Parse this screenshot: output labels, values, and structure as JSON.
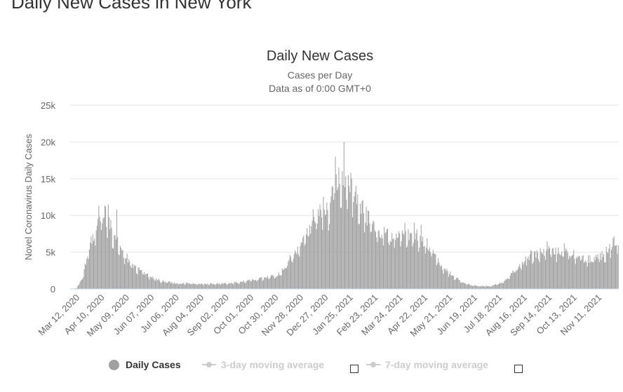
{
  "page": {
    "heading": "Daily New Cases in New York"
  },
  "chart_data": {
    "type": "bar",
    "title": "Daily New Cases",
    "subtitles": [
      "Cases per Day",
      "Data as of 0:00 GMT+0"
    ],
    "ylabel": "Novel Coronavirus Daily Cases",
    "xlabel": "",
    "ylim": [
      0,
      25000
    ],
    "y_ticks": [
      0,
      5000,
      10000,
      15000,
      20000,
      25000
    ],
    "y_tick_labels": [
      "0",
      "5k",
      "10k",
      "15k",
      "20k",
      "25k"
    ],
    "x_tick_labels": [
      "Mar 12, 2020",
      "Apr 10, 2020",
      "May 09, 2020",
      "Jun 07, 2020",
      "Jul 06, 2020",
      "Aug 04, 2020",
      "Sep 02, 2020",
      "Oct 01, 2020",
      "Oct 30, 2020",
      "Nov 28, 2020",
      "Dec 27, 2020",
      "Jan 25, 2021",
      "Feb 23, 2021",
      "Mar 24, 2021",
      "Apr 22, 2021",
      "May 21, 2021",
      "Jun 19, 2021",
      "Jul 18, 2021",
      "Aug 16, 2021",
      "Sep 14, 2021",
      "Oct 13, 2021",
      "Nov 11, 2021"
    ],
    "x_start": "2020-03-01",
    "x_end": "2021-11-30",
    "grid": true,
    "bar_color": "#a0a0a0",
    "daily_series_anchors": [
      {
        "date": "2020-03-01",
        "value": 0
      },
      {
        "date": "2020-03-08",
        "value": 100
      },
      {
        "date": "2020-03-15",
        "value": 1500
      },
      {
        "date": "2020-03-22",
        "value": 5500
      },
      {
        "date": "2020-03-29",
        "value": 7500
      },
      {
        "date": "2020-04-04",
        "value": 10000
      },
      {
        "date": "2020-04-10",
        "value": 10500
      },
      {
        "date": "2020-04-15",
        "value": 9000
      },
      {
        "date": "2020-04-22",
        "value": 7000
      },
      {
        "date": "2020-05-01",
        "value": 5000
      },
      {
        "date": "2020-05-15",
        "value": 3000
      },
      {
        "date": "2020-06-01",
        "value": 1800
      },
      {
        "date": "2020-06-15",
        "value": 1100
      },
      {
        "date": "2020-07-01",
        "value": 800
      },
      {
        "date": "2020-08-01",
        "value": 700
      },
      {
        "date": "2020-09-01",
        "value": 750
      },
      {
        "date": "2020-10-01",
        "value": 1200
      },
      {
        "date": "2020-10-30",
        "value": 2000
      },
      {
        "date": "2020-11-15",
        "value": 4500
      },
      {
        "date": "2020-11-28",
        "value": 6500
      },
      {
        "date": "2020-12-10",
        "value": 10000
      },
      {
        "date": "2020-12-27",
        "value": 11000
      },
      {
        "date": "2021-01-05",
        "value": 15000
      },
      {
        "date": "2021-01-15",
        "value": 15500
      },
      {
        "date": "2021-01-25",
        "value": 13500
      },
      {
        "date": "2021-02-10",
        "value": 10000
      },
      {
        "date": "2021-02-23",
        "value": 7500
      },
      {
        "date": "2021-03-24",
        "value": 7200
      },
      {
        "date": "2021-04-10",
        "value": 7200
      },
      {
        "date": "2021-04-22",
        "value": 6000
      },
      {
        "date": "2021-05-05",
        "value": 3500
      },
      {
        "date": "2021-05-21",
        "value": 1800
      },
      {
        "date": "2021-06-05",
        "value": 700
      },
      {
        "date": "2021-06-19",
        "value": 400
      },
      {
        "date": "2021-07-05",
        "value": 400
      },
      {
        "date": "2021-07-18",
        "value": 900
      },
      {
        "date": "2021-08-01",
        "value": 2500
      },
      {
        "date": "2021-08-16",
        "value": 4500
      },
      {
        "date": "2021-09-01",
        "value": 5000
      },
      {
        "date": "2021-09-14",
        "value": 5200
      },
      {
        "date": "2021-10-01",
        "value": 5000
      },
      {
        "date": "2021-10-13",
        "value": 4500
      },
      {
        "date": "2021-10-25",
        "value": 4000
      },
      {
        "date": "2021-11-11",
        "value": 4500
      },
      {
        "date": "2021-11-30",
        "value": 6800
      }
    ],
    "daily_series_spikes": [
      {
        "date": "2020-04-03",
        "value": 11300
      },
      {
        "date": "2020-04-14",
        "value": 11500
      },
      {
        "date": "2020-04-24",
        "value": 10800
      },
      {
        "date": "2020-12-21",
        "value": 12500
      },
      {
        "date": "2021-01-04",
        "value": 18000
      },
      {
        "date": "2021-01-08",
        "value": 16500
      },
      {
        "date": "2021-01-14",
        "value": 20000
      },
      {
        "date": "2021-01-19",
        "value": 15500
      },
      {
        "date": "2021-01-23",
        "value": 15000
      },
      {
        "date": "2021-03-26",
        "value": 9000
      },
      {
        "date": "2021-04-06",
        "value": 9000
      },
      {
        "date": "2021-04-14",
        "value": 8700
      },
      {
        "date": "2021-09-08",
        "value": 6500
      },
      {
        "date": "2021-09-28",
        "value": 6200
      },
      {
        "date": "2021-11-25",
        "value": 7200
      }
    ],
    "legend": [
      {
        "name": "Daily Cases",
        "marker": "dot",
        "active": true
      },
      {
        "name": "3-day moving average",
        "marker": "line",
        "active": false,
        "checked": false
      },
      {
        "name": "7-day moving average",
        "marker": "line",
        "active": false,
        "checked": false
      }
    ]
  }
}
